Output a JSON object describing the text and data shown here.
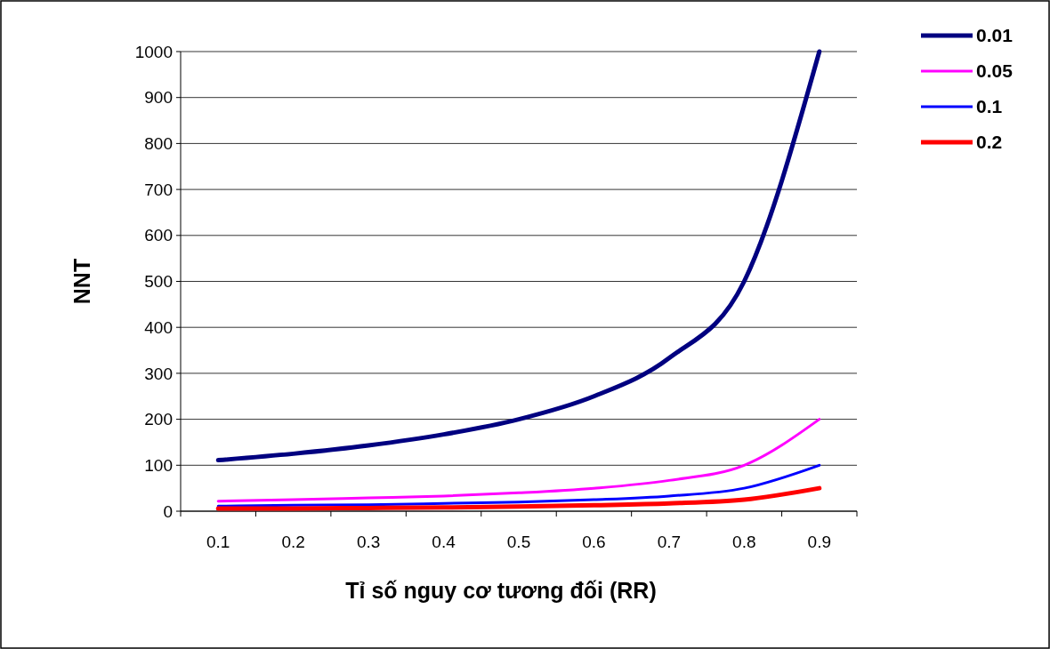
{
  "chart_data": {
    "type": "line",
    "xlabel": "Tỉ số nguy cơ tương đối (RR)",
    "ylabel": "NNT",
    "categories": [
      "0.1",
      "0.2",
      "0.3",
      "0.4",
      "0.5",
      "0.6",
      "0.7",
      "0.8",
      "0.9"
    ],
    "series": [
      {
        "name": "0.01",
        "color": "#000080",
        "values": [
          111,
          125,
          143,
          167,
          200,
          250,
          333,
          500,
          1000
        ]
      },
      {
        "name": "0.05",
        "color": "#ff00ff",
        "values": [
          22,
          25,
          29,
          33,
          40,
          50,
          67,
          100,
          200
        ]
      },
      {
        "name": "0.1",
        "color": "#0000ff",
        "values": [
          11,
          13,
          14,
          17,
          20,
          25,
          33,
          50,
          100
        ]
      },
      {
        "name": "0.2",
        "color": "#ff0000",
        "values": [
          6,
          6,
          7,
          8,
          10,
          13,
          17,
          25,
          50
        ]
      }
    ],
    "ylim": [
      0,
      1000
    ],
    "yticks": [
      0,
      100,
      200,
      300,
      400,
      500,
      600,
      700,
      800,
      900,
      1000
    ],
    "grid": "y",
    "legend": "top right",
    "marker": "none",
    "line_style": "solid"
  }
}
